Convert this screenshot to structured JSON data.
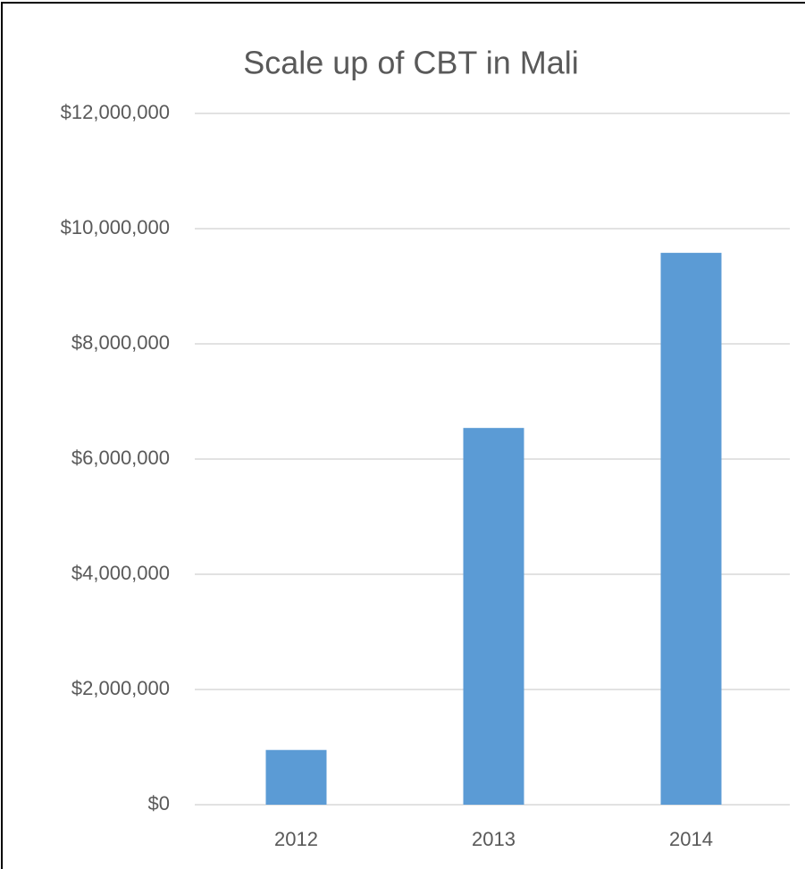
{
  "chart_data": {
    "type": "bar",
    "title": "Scale up of CBT in Mali",
    "categories": [
      "2012",
      "2013",
      "2014"
    ],
    "values": [
      950000,
      6540000,
      9580000
    ],
    "color": "#5b9bd5",
    "ylim": [
      0,
      12000000
    ],
    "yticks": [
      {
        "value": 0,
        "label": "$0"
      },
      {
        "value": 2000000,
        "label": "$2,000,000"
      },
      {
        "value": 4000000,
        "label": "$4,000,000"
      },
      {
        "value": 6000000,
        "label": "$6,000,000"
      },
      {
        "value": 8000000,
        "label": "$8,000,000"
      },
      {
        "value": 10000000,
        "label": "$10,000,000"
      },
      {
        "value": 12000000,
        "label": "$12,000,000"
      }
    ],
    "grid": true
  }
}
